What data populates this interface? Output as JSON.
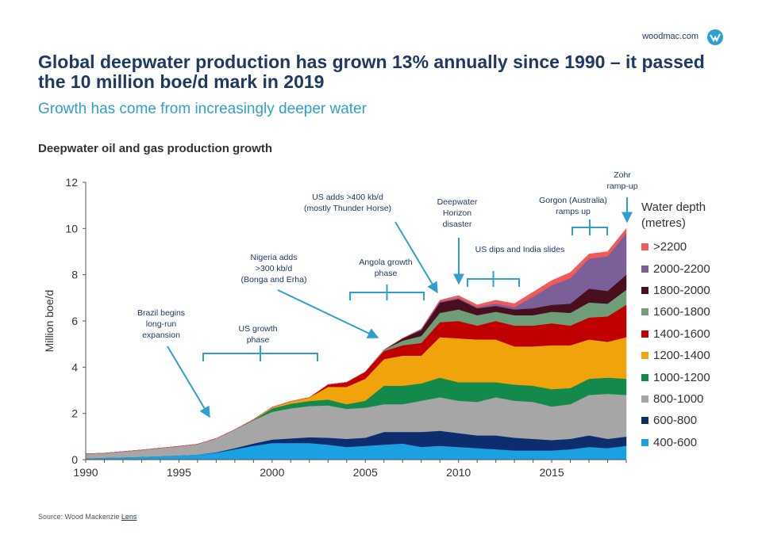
{
  "brand": {
    "site": "woodmac.com",
    "logo_icon": "woodmac-logo-icon"
  },
  "title": "Global deepwater production has grown 13% annually since 1990 – it passed the 10 million boe/d mark in 2019",
  "subtitle": "Growth has come from increasingly deeper water",
  "source": {
    "prefix": "Source: Wood Mackenzie ",
    "link": "Lens"
  },
  "chart_data": {
    "type": "area",
    "stacked": true,
    "title": "Deepwater oil and gas production growth",
    "xlabel": "",
    "ylabel": "Million boe/d",
    "xlim": [
      1990,
      2019
    ],
    "ylim": [
      0,
      12
    ],
    "x_ticks": [
      1990,
      1995,
      2000,
      2005,
      2010,
      2015
    ],
    "y_ticks": [
      0,
      2,
      4,
      6,
      8,
      10,
      12
    ],
    "grid": false,
    "legend_title": "Water depth (metres)",
    "legend_position": "right",
    "x": [
      1990,
      1991,
      1992,
      1993,
      1994,
      1995,
      1996,
      1997,
      1998,
      1999,
      2000,
      2001,
      2002,
      2003,
      2004,
      2005,
      2006,
      2007,
      2008,
      2009,
      2010,
      2011,
      2012,
      2013,
      2014,
      2015,
      2016,
      2017,
      2018,
      2019
    ],
    "series": [
      {
        "name": "400-600",
        "color": "#1ba1e2",
        "values": [
          0.05,
          0.08,
          0.1,
          0.12,
          0.15,
          0.18,
          0.22,
          0.3,
          0.45,
          0.6,
          0.72,
          0.72,
          0.72,
          0.65,
          0.55,
          0.6,
          0.65,
          0.7,
          0.55,
          0.6,
          0.55,
          0.5,
          0.45,
          0.4,
          0.4,
          0.4,
          0.45,
          0.55,
          0.5,
          0.6
        ]
      },
      {
        "name": "600-800",
        "color": "#0d2d6e",
        "values": [
          0,
          0,
          0,
          0,
          0,
          0,
          0,
          0.02,
          0.05,
          0.1,
          0.15,
          0.2,
          0.25,
          0.3,
          0.35,
          0.35,
          0.55,
          0.5,
          0.65,
          0.65,
          0.6,
          0.55,
          0.6,
          0.55,
          0.5,
          0.45,
          0.45,
          0.5,
          0.4,
          0.4
        ]
      },
      {
        "name": "800-1000",
        "color": "#a6a6a6",
        "values": [
          0.2,
          0.2,
          0.25,
          0.3,
          0.35,
          0.4,
          0.45,
          0.6,
          0.8,
          1.0,
          1.2,
          1.3,
          1.35,
          1.4,
          1.3,
          1.3,
          1.2,
          1.2,
          1.35,
          1.45,
          1.4,
          1.45,
          1.65,
          1.6,
          1.6,
          1.45,
          1.5,
          1.75,
          1.95,
          1.8
        ]
      },
      {
        "name": "1000-1200",
        "color": "#138a4c",
        "values": [
          0,
          0,
          0,
          0,
          0,
          0,
          0,
          0,
          0,
          0.02,
          0.15,
          0.2,
          0.22,
          0.25,
          0.2,
          0.3,
          0.8,
          0.8,
          0.75,
          0.85,
          0.8,
          0.85,
          0.65,
          0.7,
          0.7,
          0.75,
          0.7,
          0.7,
          0.7,
          0.7
        ]
      },
      {
        "name": "1200-1400",
        "color": "#f0a30a",
        "values": [
          0,
          0,
          0,
          0,
          0,
          0,
          0,
          0,
          0,
          0.02,
          0.05,
          0.1,
          0.15,
          0.55,
          0.75,
          0.95,
          1.15,
          1.3,
          1.2,
          1.75,
          1.9,
          1.85,
          1.85,
          1.65,
          1.7,
          1.9,
          1.85,
          1.7,
          1.55,
          1.8
        ]
      },
      {
        "name": "1400-1600",
        "color": "#c00000",
        "values": [
          0,
          0,
          0,
          0,
          0,
          0,
          0,
          0,
          0,
          0,
          0,
          0,
          0,
          0.1,
          0.2,
          0.3,
          0.35,
          0.45,
          0.55,
          0.65,
          0.75,
          0.6,
          0.8,
          0.9,
          0.9,
          0.95,
          0.85,
          0.95,
          1.1,
          1.4
        ]
      },
      {
        "name": "1600-1800",
        "color": "#6e9e78",
        "values": [
          0,
          0,
          0,
          0,
          0,
          0,
          0,
          0,
          0,
          0,
          0,
          0,
          0,
          0,
          0,
          0,
          0.05,
          0.2,
          0.3,
          0.4,
          0.5,
          0.45,
          0.4,
          0.45,
          0.45,
          0.5,
          0.55,
          0.65,
          0.55,
          0.65
        ]
      },
      {
        "name": "1800-2000",
        "color": "#4a0f1e",
        "values": [
          0,
          0,
          0,
          0,
          0,
          0,
          0,
          0,
          0,
          0,
          0,
          0,
          0,
          0,
          0,
          0,
          0,
          0.1,
          0.25,
          0.45,
          0.45,
          0.3,
          0.25,
          0.25,
          0.3,
          0.3,
          0.4,
          0.6,
          0.55,
          0.65
        ]
      },
      {
        "name": "2000-2200",
        "color": "#7a5f99",
        "values": [
          0,
          0,
          0,
          0,
          0,
          0,
          0,
          0,
          0,
          0,
          0,
          0,
          0,
          0,
          0,
          0,
          0,
          0,
          0.05,
          0.05,
          0.05,
          0.05,
          0.1,
          0.1,
          0.5,
          0.85,
          1.1,
          1.3,
          1.5,
          1.8
        ]
      },
      {
        "name": ">2200",
        "color": "#f25a5a",
        "values": [
          0,
          0,
          0,
          0,
          0,
          0,
          0,
          0,
          0,
          0,
          0,
          0,
          0,
          0,
          0,
          0,
          0,
          0,
          0,
          0.05,
          0.1,
          0.1,
          0.15,
          0.15,
          0.2,
          0.2,
          0.25,
          0.2,
          0.2,
          0.2
        ]
      }
    ],
    "annotations": [
      {
        "lines": [
          "Brazil begins",
          "long-run",
          "expansion"
        ]
      },
      {
        "lines": [
          "US growth",
          "phase"
        ]
      },
      {
        "lines": [
          "Nigeria adds",
          ">300 kb/d",
          "(Bonga and Erha)"
        ]
      },
      {
        "lines": [
          "Angola growth",
          "phase"
        ]
      },
      {
        "lines": [
          "US adds >400 kb/d",
          "(mostly Thunder Horse)"
        ]
      },
      {
        "lines": [
          "Deepwater",
          "Horizon",
          "disaster"
        ]
      },
      {
        "lines": [
          "US dips and India slides"
        ]
      },
      {
        "lines": [
          "Gorgon (Australia)",
          "ramps up"
        ]
      },
      {
        "lines": [
          "Zohr",
          "ramp-up"
        ]
      }
    ]
  }
}
